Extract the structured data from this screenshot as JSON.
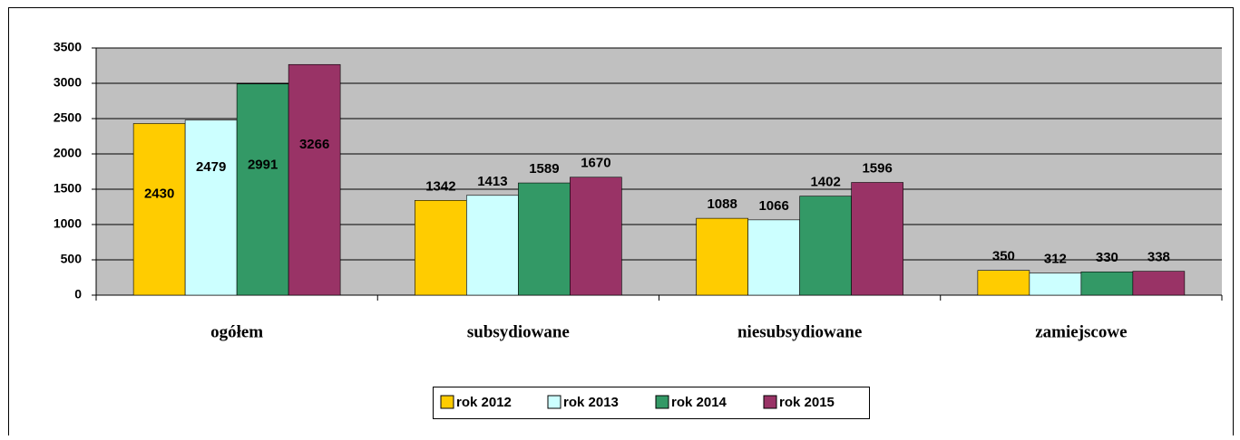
{
  "chart_data": {
    "type": "bar",
    "categories": [
      "ogółem",
      "subsydiowane",
      "niesubsydiowane",
      "zamiejscowe"
    ],
    "series": [
      {
        "name": "rok 2012",
        "color": "#ffcc00",
        "values": [
          2430,
          1342,
          1088,
          350
        ]
      },
      {
        "name": "rok 2013",
        "color": "#ccffff",
        "values": [
          2479,
          1413,
          1066,
          312
        ]
      },
      {
        "name": "rok 2014",
        "color": "#339966",
        "values": [
          2991,
          1589,
          1402,
          330
        ]
      },
      {
        "name": "rok 2015",
        "color": "#993366",
        "values": [
          3266,
          1670,
          1596,
          338
        ]
      }
    ],
    "ylim": [
      0,
      3500
    ],
    "yticks": [
      0,
      500,
      1000,
      1500,
      2000,
      2500,
      3000,
      3500
    ],
    "grid": true,
    "legend": "bottom"
  }
}
